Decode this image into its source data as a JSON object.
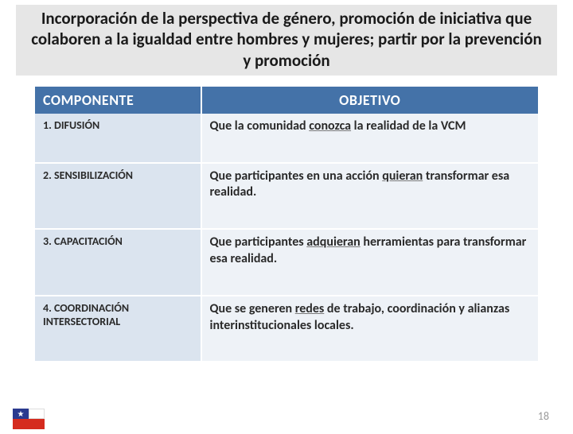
{
  "title": "Incorporación de la perspectiva de género, promoción de iniciativa que colaboren a la igualdad entre hombres y mujeres; partir por la  prevención y promoción",
  "headers": {
    "componente": "COMPONENTE",
    "objetivo": "OBJETIVO"
  },
  "rows": [
    {
      "componente": "1. DIFUSIÓN",
      "objetivo_pre": "Que la comunidad ",
      "objetivo_ul": "conozca",
      "objetivo_post": "  la  realidad de la VCM"
    },
    {
      "componente": "2. SENSIBILIZACIÓN",
      "objetivo_pre": "Que participantes en una acción ",
      "objetivo_ul": "quieran",
      "objetivo_post": " transformar esa realidad."
    },
    {
      "componente": "3. CAPACITACIÓN",
      "objetivo_pre": "Que participantes ",
      "objetivo_ul": "adquieran",
      "objetivo_post": " herramientas para transformar esa realidad."
    },
    {
      "componente": "4. COORDINACIÓN INTERSECTORIAL",
      "objetivo_pre": "Que se generen ",
      "objetivo_ul": "redes",
      "objetivo_post": " de trabajo, coordinación y alianzas interinstitucionales locales."
    }
  ],
  "page_number": "18",
  "colors": {
    "title_bg": "#e6e6e6",
    "header_bg": "#4472a8",
    "comp_bg": "#dbe4ef",
    "obj_bg": "#eef2f7"
  }
}
